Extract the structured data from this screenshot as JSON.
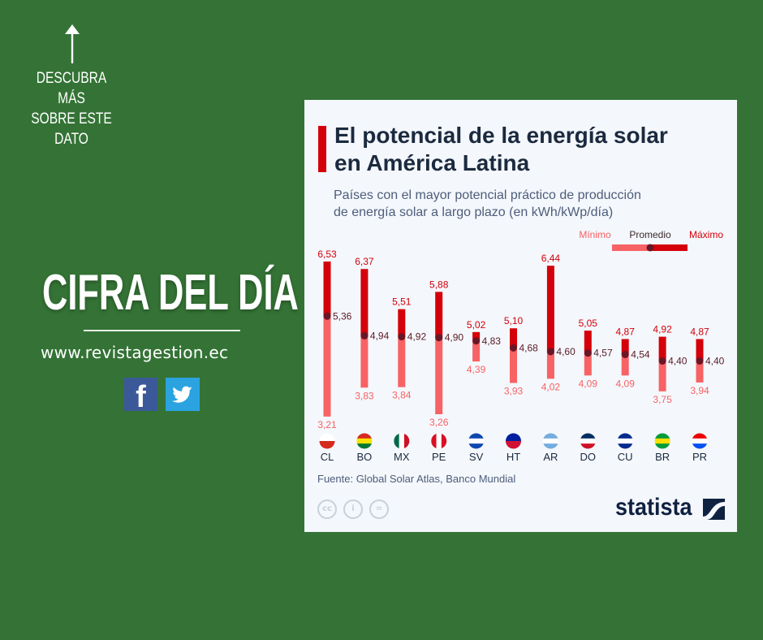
{
  "left_panel": {
    "cta": [
      "DESCUBRA MÁS",
      "SOBRE ESTE",
      "DATO"
    ],
    "headline": "CIFRA DEL DÍA",
    "website": "www.revistagestion.ec",
    "social": [
      "facebook-icon",
      "twitter-icon"
    ]
  },
  "card": {
    "title_line1": "El potencial de la energía solar",
    "title_line2": "en América Latina",
    "subtitle_line1": "Países con el mayor potencial práctico de producción",
    "subtitle_line2": "de energía solar a largo plazo (en kWh/kWp/día)",
    "source": "Fuente: Global Solar Atlas, Banco Mundial",
    "license_icons": [
      "cc-icon",
      "attribution-icon",
      "no-derivatives-icon"
    ],
    "logo": "statista"
  },
  "chart_data": {
    "type": "range-bar",
    "legend": {
      "min": "Mínimo",
      "avg": "Promedio",
      "max": "Máximo",
      "position": "top-right"
    },
    "colors": {
      "min": "#f76265",
      "max": "#d4000a",
      "avg": "#6b1626"
    },
    "categories": [
      "CL",
      "BO",
      "MX",
      "PE",
      "SV",
      "HT",
      "AR",
      "DO",
      "CU",
      "BR",
      "PR"
    ],
    "min": [
      3.21,
      3.83,
      3.84,
      3.26,
      4.39,
      3.93,
      4.02,
      4.09,
      4.09,
      3.75,
      3.94
    ],
    "avg": [
      5.36,
      4.94,
      4.92,
      4.9,
      4.83,
      4.68,
      4.6,
      4.57,
      4.54,
      4.4,
      4.4
    ],
    "max": [
      6.53,
      6.37,
      5.51,
      5.88,
      5.02,
      5.1,
      6.44,
      5.05,
      4.87,
      4.92,
      4.87
    ],
    "labels_min": [
      "3,21",
      "3,83",
      "3,84",
      "3,26",
      "4,39",
      "3,93",
      "4,02",
      "4,09",
      "4,09",
      "3,75",
      "3,94"
    ],
    "labels_avg": [
      "5,36",
      "4,94",
      "4,92",
      "4,90",
      "4,83",
      "4,68",
      "4,60",
      "4,57",
      "4,54",
      "4,40",
      "4,40"
    ],
    "labels_max": [
      "6,53",
      "6,37",
      "5,51",
      "5,88",
      "5,02",
      "5,10",
      "6,44",
      "5,05",
      "4,87",
      "4,92",
      "4,87"
    ],
    "flags": [
      [
        "#ffffff",
        "#d52b1e"
      ],
      [
        "#d52b1e",
        "#f9e300",
        "#007934"
      ],
      [
        "#006847",
        "#ffffff",
        "#ce1126"
      ],
      [
        "#d91023",
        "#ffffff",
        "#d91023"
      ],
      [
        "#0f47af",
        "#ffffff",
        "#0f47af"
      ],
      [
        "#00209f",
        "#d21034"
      ],
      [
        "#74acdf",
        "#ffffff",
        "#74acdf"
      ],
      [
        "#002d62",
        "#ffffff",
        "#ce1126"
      ],
      [
        "#002a8f",
        "#ffffff",
        "#002a8f"
      ],
      [
        "#009c3b",
        "#ffdf00",
        "#009c3b"
      ],
      [
        "#ed0000",
        "#ffffff",
        "#0050f0"
      ]
    ]
  }
}
